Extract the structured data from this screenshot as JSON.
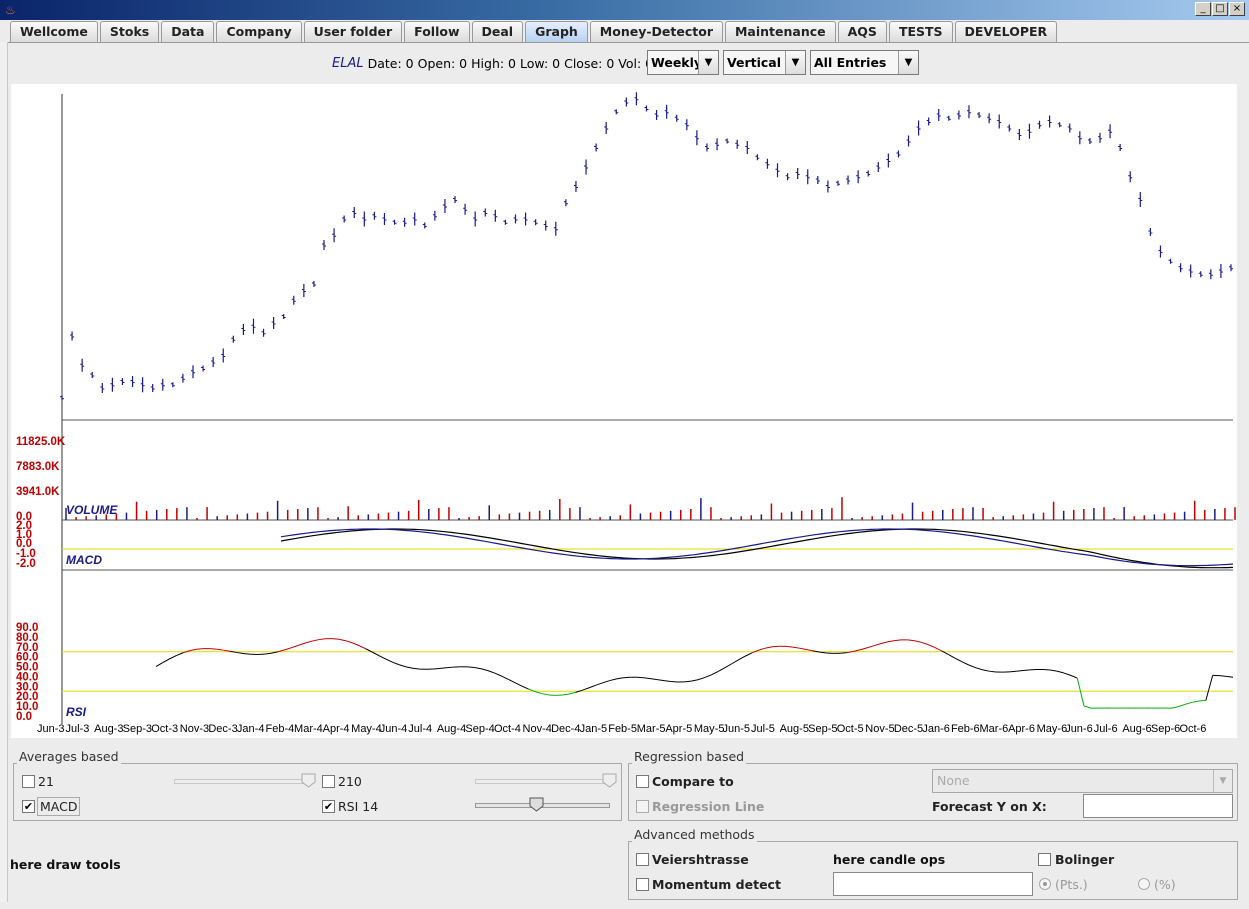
{
  "window": {
    "icon": "java-cup-icon",
    "controls": [
      "_",
      "□",
      "×"
    ]
  },
  "tabs": [
    "Wellcome",
    "Stoks",
    "Data",
    "Company",
    "User folder",
    "Follow",
    "Deal",
    "Graph",
    "Money-Detector",
    "Maintenance",
    "AQS",
    "TESTS",
    "DEVELOPER"
  ],
  "active_tab": "Graph",
  "info": {
    "symbol": "ELAL",
    "date": "Date: 0",
    "open": "Open: 0",
    "high": "High: 0",
    "low": "Low: 0",
    "close": "Close: 0",
    "vol": "Vol: 0"
  },
  "combos": {
    "period": "Weekly",
    "orientation": "Vertical",
    "entries": "All Entries"
  },
  "chart_data": [
    {
      "type": "ohlc",
      "title": "",
      "x_tick_labels": [
        "Jun-3",
        "Jul-3",
        "Aug-3",
        "Sep-3",
        "Oct-3",
        "Nov-3",
        "Dec-3",
        "Jan-4",
        "Feb-4",
        "Mar-4",
        "Apr-4",
        "May-4",
        "Jun-4",
        "Jul-4",
        "Aug-4",
        "Sep-4",
        "Oct-4",
        "Nov-4",
        "Dec-4",
        "Jan-5",
        "Feb-5",
        "Mar-5",
        "Apr-5",
        "May-5",
        "Jun-5",
        "Jul-5",
        "Aug-5",
        "Sep-5",
        "Oct-5",
        "Nov-5",
        "Dec-5",
        "Jan-6",
        "Feb-6",
        "Mar-6",
        "Apr-6",
        "May-6",
        "Jun-6",
        "Jul-6",
        "Aug-6",
        "Sep-6",
        "Oct-6"
      ],
      "price_relative": [
        0.05,
        0.24,
        0.15,
        0.12,
        0.08,
        0.09,
        0.1,
        0.1,
        0.09,
        0.08,
        0.09,
        0.09,
        0.11,
        0.13,
        0.14,
        0.16,
        0.18,
        0.23,
        0.26,
        0.27,
        0.25,
        0.28,
        0.3,
        0.35,
        0.38,
        0.4,
        0.52,
        0.55,
        0.6,
        0.62,
        0.6,
        0.61,
        0.6,
        0.59,
        0.59,
        0.6,
        0.58,
        0.61,
        0.64,
        0.66,
        0.63,
        0.6,
        0.62,
        0.61,
        0.59,
        0.6,
        0.6,
        0.59,
        0.58,
        0.57,
        0.65,
        0.7,
        0.76,
        0.82,
        0.88,
        0.93,
        0.96,
        0.97,
        0.94,
        0.92,
        0.93,
        0.91,
        0.89,
        0.85,
        0.82,
        0.83,
        0.84,
        0.83,
        0.82,
        0.79,
        0.77,
        0.75,
        0.73,
        0.74,
        0.73,
        0.72,
        0.7,
        0.71,
        0.72,
        0.73,
        0.74,
        0.76,
        0.78,
        0.8,
        0.84,
        0.88,
        0.9,
        0.92,
        0.91,
        0.92,
        0.93,
        0.92,
        0.91,
        0.9,
        0.88,
        0.86,
        0.87,
        0.89,
        0.9,
        0.89,
        0.88,
        0.85,
        0.84,
        0.85,
        0.87,
        0.82,
        0.73,
        0.66,
        0.56,
        0.5,
        0.47,
        0.45,
        0.44,
        0.43,
        0.43,
        0.44,
        0.45
      ]
    },
    {
      "type": "bar",
      "label": "VOLUME",
      "yticks": [
        "11825.0K",
        "7883.0K",
        "3941.0K",
        "0.0"
      ]
    },
    {
      "type": "line",
      "label": "MACD",
      "yticks": [
        "2.0",
        "1.0",
        "0.0",
        "-1.0",
        "-2.0"
      ]
    },
    {
      "type": "line",
      "label": "RSI",
      "yticks": [
        "90.0",
        "80.0",
        "70.0",
        "60.0",
        "50.0",
        "40.0",
        "30.0",
        "20.0",
        "10.0",
        "0.0"
      ],
      "upper_band": 65,
      "lower_band": 25
    }
  ],
  "averages": {
    "legend": "Averages based",
    "ma21": {
      "label": "21",
      "checked": false
    },
    "ma210": {
      "label": "210",
      "checked": false
    },
    "macd": {
      "label": "MACD",
      "checked": true
    },
    "rsi": {
      "label": "RSI 14",
      "checked": true,
      "level": 0.45
    }
  },
  "regression": {
    "legend": "Regression based",
    "compare_label": "Compare to",
    "compare_value": "None",
    "regression_line_label": "Regression Line",
    "forecast_label": "Forecast Y on X:"
  },
  "advanced": {
    "legend": "Advanced methods",
    "veiershtrasse": "Veiershtrasse",
    "candle_ops": "here candle ops",
    "bolinger": "Bolinger",
    "momentum": "Momentum detect",
    "pts": "(Pts.)",
    "pct": "(%)"
  },
  "draw_tools": "here draw tools"
}
